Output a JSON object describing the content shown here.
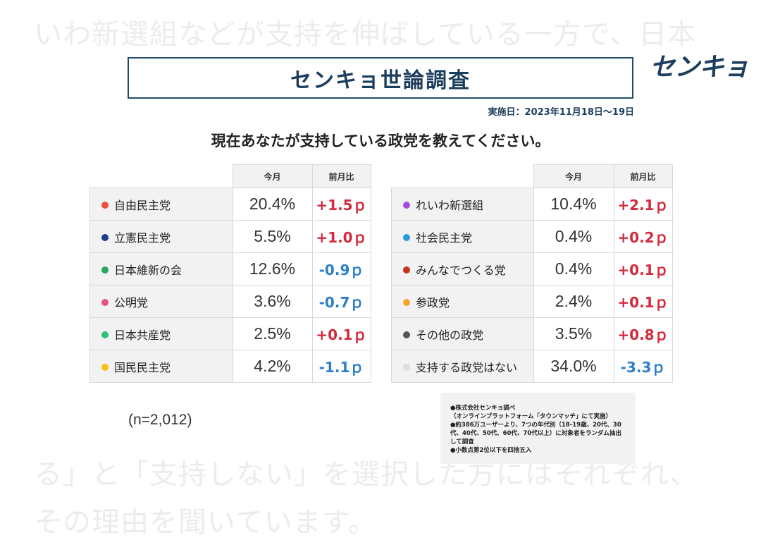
{
  "background": {
    "top_line": "いわ新選組などが支持を伸ばしている一方で、日本",
    "bottom_line1": "る」と「支持しない」を選択した方にはそれぞれ、",
    "bottom_line2": "その理由を聞いています。"
  },
  "header": {
    "title": "センキョ世論調査",
    "logo": "センキョ",
    "date": "実施日：2023年11月18日〜19日",
    "question": "現在あなたが支持している政党を教えてください。"
  },
  "chart_data": {
    "type": "table",
    "columns": [
      "今月",
      "前月比"
    ],
    "rows": [
      {
        "party": "自由民主党",
        "current": "20.4%",
        "change": "+1.5ｐ",
        "color": "#e8513b"
      },
      {
        "party": "立憲民主党",
        "current": "5.5%",
        "change": "+1.0ｐ",
        "color": "#1b3f8f"
      },
      {
        "party": "日本維新の会",
        "current": "12.6%",
        "change": "-0.9ｐ",
        "color": "#2aa65f"
      },
      {
        "party": "公明党",
        "current": "3.6%",
        "change": "-0.7ｐ",
        "color": "#e6508a"
      },
      {
        "party": "日本共産党",
        "current": "2.5%",
        "change": "+0.1ｐ",
        "color": "#2fc07a"
      },
      {
        "party": "国民民主党",
        "current": "4.2%",
        "change": "-1.1ｐ",
        "color": "#f5c116"
      },
      {
        "party": "れいわ新選組",
        "current": "10.4%",
        "change": "+2.1ｐ",
        "color": "#a24ee0"
      },
      {
        "party": "社会民主党",
        "current": "0.4%",
        "change": "+0.2ｐ",
        "color": "#2b9ae0"
      },
      {
        "party": "みんなでつくる党",
        "current": "0.4%",
        "change": "+0.1ｐ",
        "color": "#c4321e"
      },
      {
        "party": "参政党",
        "current": "2.4%",
        "change": "+0.1ｐ",
        "color": "#f5a52b"
      },
      {
        "party": "その他の政党",
        "current": "3.5%",
        "change": "+0.8ｐ",
        "color": "#555555"
      },
      {
        "party": "支持する政党はない",
        "current": "34.0%",
        "change": "-3.3ｐ",
        "color": "#dddddd"
      }
    ],
    "positive_color": "#d42a3c",
    "negative_color": "#2e7fc9"
  },
  "sample": "(n=2,012)",
  "notes": [
    "●株式会社センキョ調べ",
    "（オンラインプラットフォーム「タウンマッチ」にて実施）",
    "●約386万ユーザーより、7つの年代別（18-19歳、20代、30代、40代、50代、60代、70代以上）に対象者をランダム抽出して調査",
    "●小数点第2位以下を四捨五入"
  ]
}
